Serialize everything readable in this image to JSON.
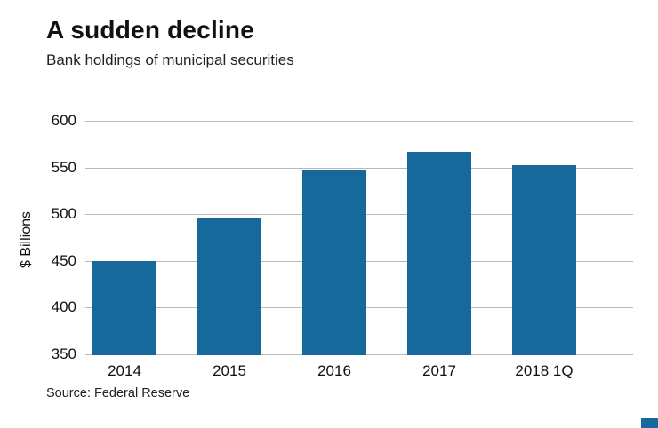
{
  "header": {
    "title": "A sudden decline",
    "subtitle": "Bank holdings of municipal securities"
  },
  "source_line": "Source: Federal Reserve",
  "colors": {
    "bar": "#16699a",
    "gridline": "#b9b9b9",
    "brand_mark": "#16699a"
  },
  "chart_data": {
    "type": "bar",
    "title": "A sudden decline",
    "subtitle": "Bank holdings of municipal securities",
    "categories": [
      "2014",
      "2015",
      "2016",
      "2017",
      "2018 1Q"
    ],
    "values": [
      451,
      497,
      548,
      568,
      553
    ],
    "xlabel": "",
    "ylabel": "$ Billions",
    "ylim": [
      350,
      600
    ],
    "yticks": [
      350,
      400,
      450,
      500,
      550,
      600
    ],
    "grid": "horizontal",
    "legend": "none",
    "source": "Source: Federal Reserve"
  }
}
